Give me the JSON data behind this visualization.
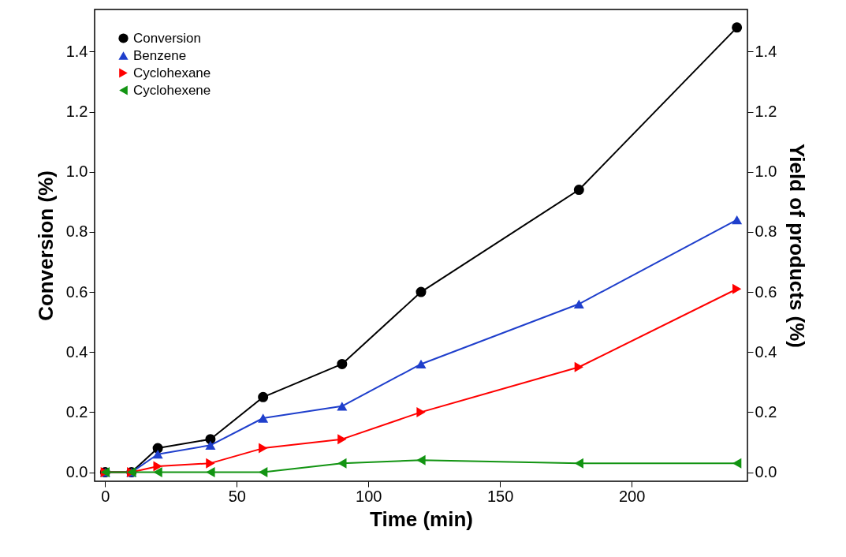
{
  "chart_data": {
    "type": "line",
    "xlabel": "Time (min)",
    "ylabel": "Conversion (%)",
    "y2label": "Yield of products (%)",
    "x": [
      0,
      10,
      20,
      40,
      60,
      90,
      120,
      180,
      240
    ],
    "xlim": [
      -4,
      244
    ],
    "xticks": [
      0,
      50,
      100,
      150,
      200
    ],
    "ylim": [
      -0.03,
      1.54
    ],
    "yticks": [
      {
        "value": 0,
        "label": "0.0"
      },
      0.2,
      0.4,
      0.6,
      0.8,
      {
        "value": 1,
        "label": "1.0"
      },
      1.2,
      1.4
    ],
    "y2lim": [
      -0.03,
      1.54
    ],
    "y2ticks": [
      {
        "value": 0,
        "label": "0.0"
      },
      0.2,
      0.4,
      0.6,
      0.8,
      {
        "value": 1,
        "label": "1.0"
      },
      1.2,
      1.4
    ],
    "legend": "top left",
    "line_style": "solid",
    "series": [
      {
        "name": "Conversion",
        "color": "#000000",
        "marker": "circle",
        "values": [
          0,
          0,
          0.08,
          0.11,
          0.25,
          0.36,
          0.6,
          0.94,
          1.48
        ]
      },
      {
        "name": "Benzene",
        "color": "#1f3fcc",
        "marker": "triangle",
        "axis": "y2",
        "values": [
          0,
          0,
          0.06,
          0.09,
          0.18,
          0.22,
          0.36,
          0.56,
          0.84
        ]
      },
      {
        "name": "Cyclohexane",
        "color": "#ff0000",
        "marker": "triangle-right",
        "axis": "y2",
        "values": [
          0,
          0,
          0.02,
          0.03,
          0.08,
          0.11,
          0.2,
          0.35,
          0.61
        ]
      },
      {
        "name": "Cyclohexene",
        "color": "#129412",
        "marker": "triangle-left",
        "axis": "y2",
        "values": [
          0,
          0,
          0,
          0,
          0,
          0.03,
          0.04,
          0.03,
          0.03
        ]
      }
    ]
  }
}
